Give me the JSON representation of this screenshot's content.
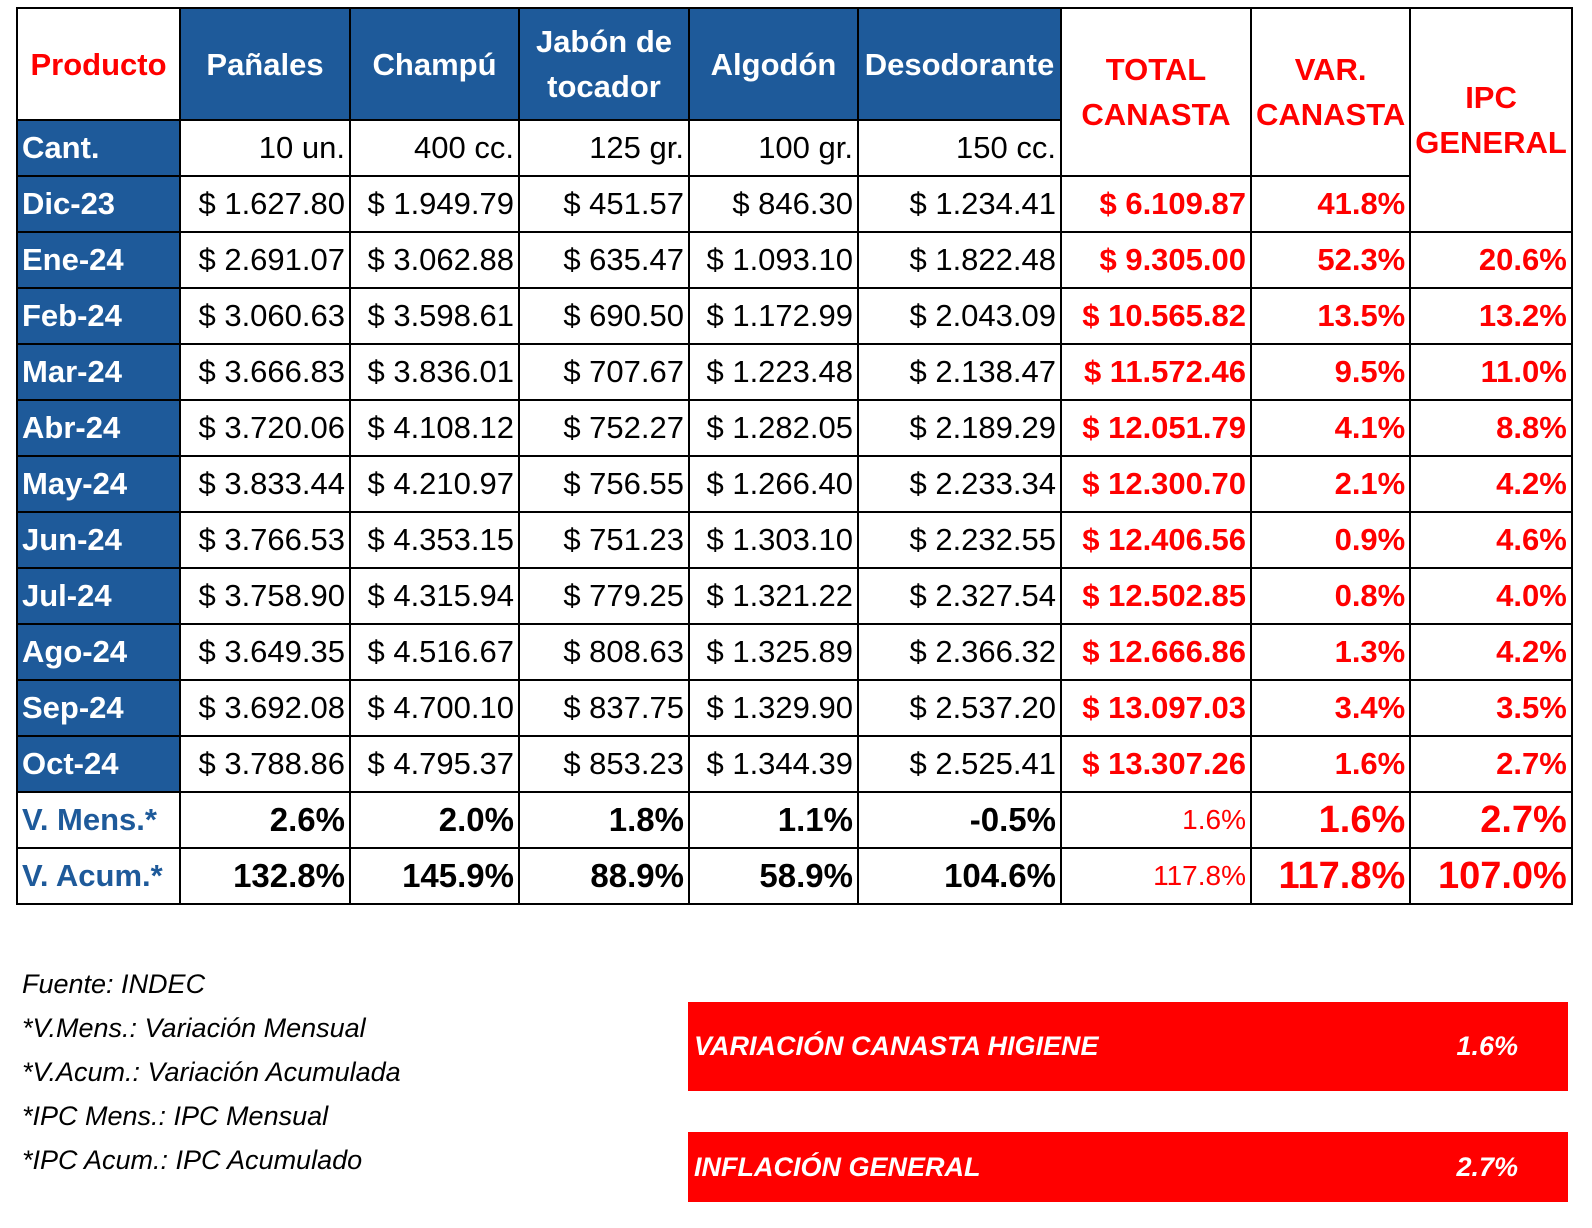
{
  "header": {
    "product": "Producto",
    "columns": [
      "Pañales",
      "Champú",
      "Jabón de tocador",
      "Algodón",
      "Desodorante"
    ],
    "column_lines": [
      [
        "Pañales"
      ],
      [
        "Champú"
      ],
      [
        "Jabón de",
        "tocador"
      ],
      [
        "Algodón"
      ],
      [
        "Desodorante"
      ]
    ],
    "total": [
      "TOTAL",
      "CANASTA"
    ],
    "var": [
      "VAR.",
      "CANASTA"
    ],
    "ipc": [
      "IPC",
      "GENERAL"
    ]
  },
  "quantity": {
    "label": "Cant.",
    "values": [
      "10 un.",
      "400 cc.",
      "125 gr.",
      "100 gr.",
      "150 cc."
    ]
  },
  "rows": [
    {
      "month": "Dic-23",
      "prices": [
        "$ 1.627.80",
        "$ 1.949.79",
        "$ 451.57",
        "$ 846.30",
        "$ 1.234.41"
      ],
      "total": "$ 6.109.87",
      "var": "41.8%",
      "ipc": ""
    },
    {
      "month": "Ene-24",
      "prices": [
        "$ 2.691.07",
        "$ 3.062.88",
        "$ 635.47",
        "$ 1.093.10",
        "$ 1.822.48"
      ],
      "total": "$ 9.305.00",
      "var": "52.3%",
      "ipc": "20.6%"
    },
    {
      "month": "Feb-24",
      "prices": [
        "$ 3.060.63",
        "$ 3.598.61",
        "$ 690.50",
        "$ 1.172.99",
        "$ 2.043.09"
      ],
      "total": "$ 10.565.82",
      "var": "13.5%",
      "ipc": "13.2%"
    },
    {
      "month": "Mar-24",
      "prices": [
        "$ 3.666.83",
        "$ 3.836.01",
        "$ 707.67",
        "$ 1.223.48",
        "$ 2.138.47"
      ],
      "total": "$ 11.572.46",
      "var": "9.5%",
      "ipc": "11.0%"
    },
    {
      "month": "Abr-24",
      "prices": [
        "$ 3.720.06",
        "$ 4.108.12",
        "$ 752.27",
        "$ 1.282.05",
        "$ 2.189.29"
      ],
      "total": "$ 12.051.79",
      "var": "4.1%",
      "ipc": "8.8%"
    },
    {
      "month": "May-24",
      "prices": [
        "$ 3.833.44",
        "$ 4.210.97",
        "$ 756.55",
        "$ 1.266.40",
        "$ 2.233.34"
      ],
      "total": "$ 12.300.70",
      "var": "2.1%",
      "ipc": "4.2%"
    },
    {
      "month": "Jun-24",
      "prices": [
        "$ 3.766.53",
        "$ 4.353.15",
        "$ 751.23",
        "$ 1.303.10",
        "$ 2.232.55"
      ],
      "total": "$ 12.406.56",
      "var": "0.9%",
      "ipc": "4.6%"
    },
    {
      "month": "Jul-24",
      "prices": [
        "$ 3.758.90",
        "$ 4.315.94",
        "$ 779.25",
        "$ 1.321.22",
        "$ 2.327.54"
      ],
      "total": "$ 12.502.85",
      "var": "0.8%",
      "ipc": "4.0%"
    },
    {
      "month": "Ago-24",
      "prices": [
        "$ 3.649.35",
        "$ 4.516.67",
        "$ 808.63",
        "$ 1.325.89",
        "$ 2.366.32"
      ],
      "total": "$ 12.666.86",
      "var": "1.3%",
      "ipc": "4.2%"
    },
    {
      "month": "Sep-24",
      "prices": [
        "$ 3.692.08",
        "$ 4.700.10",
        "$ 837.75",
        "$ 1.329.90",
        "$ 2.537.20"
      ],
      "total": "$ 13.097.03",
      "var": "3.4%",
      "ipc": "3.5%"
    },
    {
      "month": "Oct-24",
      "prices": [
        "$ 3.788.86",
        "$ 4.795.37",
        "$ 853.23",
        "$ 1.344.39",
        "$ 2.525.41"
      ],
      "total": "$ 13.307.26",
      "var": "1.6%",
      "ipc": "2.7%"
    }
  ],
  "summary": [
    {
      "label": "V. Mens.*",
      "values": [
        "2.6%",
        "2.0%",
        "1.8%",
        "1.1%",
        "-0.5%"
      ],
      "total": "1.6%",
      "var": "1.6%",
      "ipc": "2.7%"
    },
    {
      "label": "V. Acum.*",
      "values": [
        "132.8%",
        "145.9%",
        "88.9%",
        "58.9%",
        "104.6%"
      ],
      "total": "117.8%",
      "var": "117.8%",
      "ipc": "107.0%"
    }
  ],
  "notes": [
    "Fuente: INDEC",
    "*V.Mens.: Variación Mensual",
    "*V.Acum.: Variación Acumulada",
    "*IPC Mens.: IPC Mensual",
    "*IPC Acum.: IPC Acumulado"
  ],
  "boxes": [
    {
      "label": "VARIACIÓN CANASTA HIGIENE",
      "value": "1.6%"
    },
    {
      "label": "INFLACIÓN GENERAL",
      "value": "2.7%"
    }
  ],
  "colors": {
    "blue": "#1e5a9a",
    "red": "#ff0000"
  }
}
